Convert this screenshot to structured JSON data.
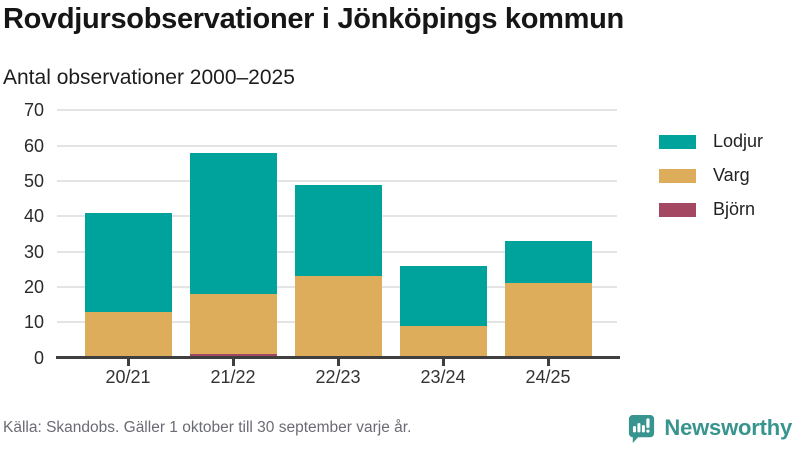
{
  "header": {
    "title": "Rovdjursobservationer i Jönköpings kommun",
    "subtitle": "Antal observationer 2000–2025"
  },
  "chart_data": {
    "type": "bar",
    "stacked": true,
    "title": "Rovdjursobservationer i Jönköpings kommun",
    "subtitle": "Antal observationer 2000–2025",
    "categories": [
      "20/21",
      "21/22",
      "22/23",
      "23/24",
      "24/25"
    ],
    "series": [
      {
        "name": "Lodjur",
        "color": "#00a39b",
        "values": [
          28,
          40,
          26,
          17,
          12
        ]
      },
      {
        "name": "Varg",
        "color": "#ddad5b",
        "values": [
          13,
          17,
          23,
          9,
          21
        ]
      },
      {
        "name": "Björn",
        "color": "#a34763",
        "values": [
          0,
          1,
          0,
          0,
          0
        ]
      }
    ],
    "totals": [
      41,
      58,
      49,
      26,
      33
    ],
    "xlabel": "",
    "ylabel": "",
    "ylim": [
      0,
      70
    ],
    "yticks": [
      0,
      10,
      20,
      30,
      40,
      50,
      60,
      70
    ],
    "grid": true,
    "legend_position": "right"
  },
  "footer": {
    "source": "Källa: Skandobs. Gäller 1 oktober till 30 september varje år.",
    "brand": "Newsworthy"
  },
  "colors": {
    "lodjur": "#00a39b",
    "varg": "#ddad5b",
    "bjorn": "#a34763",
    "axis": "#3f3f3f",
    "gridline": "#e4e4e4",
    "brand_teal": "#37948e"
  }
}
